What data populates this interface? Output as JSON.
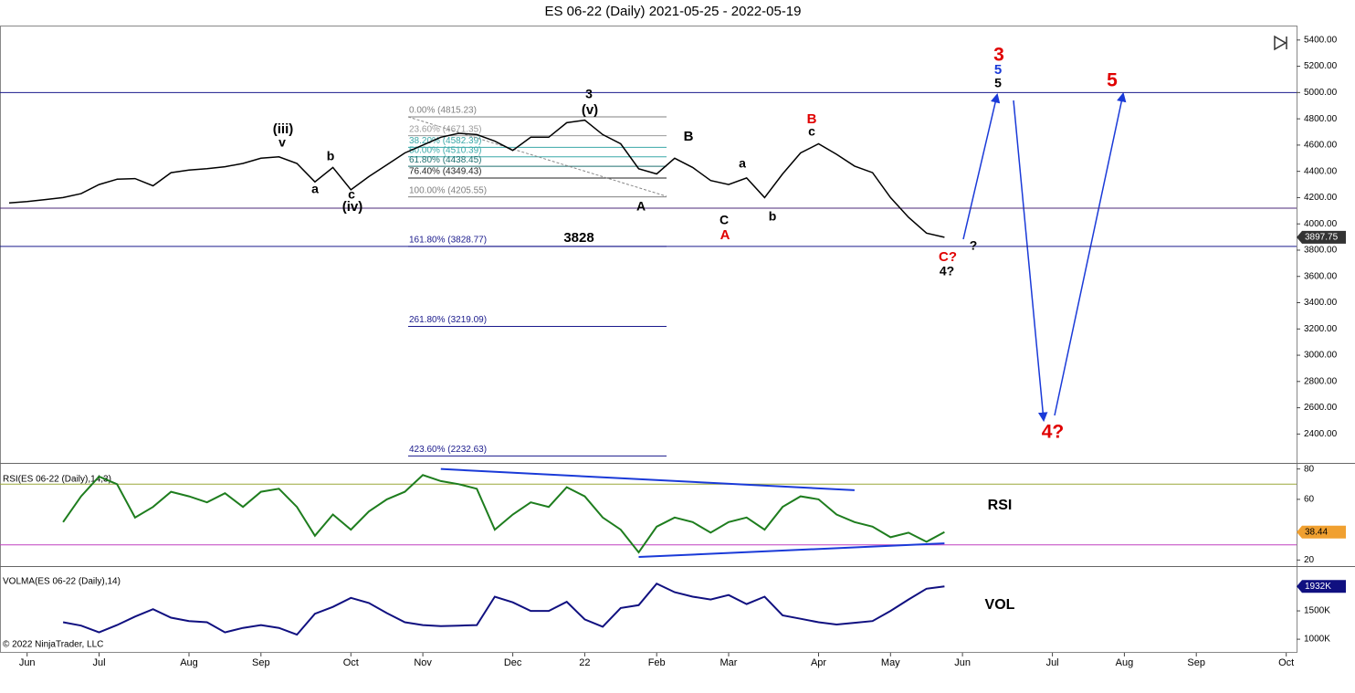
{
  "chart_data": [
    {
      "type": "line",
      "title": "ES 06-22 (Daily)  2021-05-25 - 2022-05-19",
      "color": "#000000",
      "categories": [
        null,
        "Jun",
        null,
        null,
        null,
        "Jul",
        null,
        null,
        null,
        null,
        "Aug",
        null,
        null,
        null,
        "Sep",
        null,
        null,
        null,
        null,
        "Oct",
        null,
        null,
        null,
        "Nov",
        null,
        null,
        null,
        null,
        "Dec",
        null,
        null,
        null,
        "22",
        null,
        null,
        null,
        "Feb",
        null,
        null,
        null,
        "Mar",
        null,
        null,
        null,
        null,
        "Apr",
        null,
        null,
        null,
        "May",
        null,
        null,
        null,
        "Jun",
        null,
        null,
        null,
        null,
        "Jul",
        null,
        null,
        null,
        "Aug",
        null,
        null,
        null,
        "Sep",
        null,
        null,
        null,
        null,
        "Oct"
      ],
      "values": [
        4160,
        4170,
        4185,
        4200,
        4230,
        4300,
        4340,
        4345,
        4290,
        4390,
        4410,
        4420,
        4435,
        4460,
        4500,
        4510,
        4460,
        4320,
        4430,
        4260,
        4360,
        4450,
        4540,
        4600,
        4660,
        4690,
        4680,
        4630,
        4560,
        4660,
        4660,
        4770,
        4790,
        4680,
        4610,
        4420,
        4380,
        4500,
        4430,
        4330,
        4300,
        4350,
        4200,
        4380,
        4540,
        4610,
        4530,
        4440,
        4390,
        4200,
        4050,
        3930,
        3897.75,
        null,
        null,
        null,
        null,
        null,
        null,
        null,
        null,
        null,
        null,
        null,
        null,
        null,
        null,
        null,
        null,
        null,
        null,
        null
      ],
      "ylim": [
        2180,
        5510
      ],
      "yticks": [
        {
          "value": 2400,
          "label": "2400.00"
        },
        {
          "value": 2600,
          "label": "2600.00"
        },
        {
          "value": 2800,
          "label": "2800.00"
        },
        {
          "value": 3000,
          "label": "3000.00"
        },
        {
          "value": 3200,
          "label": "3200.00"
        },
        {
          "value": 3400,
          "label": "3400.00"
        },
        {
          "value": 3600,
          "label": "3600.00"
        },
        {
          "value": 3800,
          "label": "3800.00"
        },
        {
          "value": 4000,
          "label": "4000.00"
        },
        {
          "value": 4200,
          "label": "4200.00"
        },
        {
          "value": 4400,
          "label": "4400.00"
        },
        {
          "value": 4600,
          "label": "4600.00"
        },
        {
          "value": 4800,
          "label": "4800.00"
        },
        {
          "value": 5000,
          "label": "5000.00"
        },
        {
          "value": 5200,
          "label": "5200.00"
        },
        {
          "value": 5400,
          "label": "5400.00"
        }
      ],
      "hlines": [
        {
          "value": 5000,
          "color": "#1a1a8c"
        },
        {
          "value": 4120,
          "color": "#4b2a7a"
        },
        {
          "value": 3828.77,
          "color": "#1a1a8c"
        }
      ],
      "fib": [
        {
          "value": 4815.23,
          "label": "0.00% (4815.23)",
          "color": "#808080"
        },
        {
          "value": 4671.35,
          "label": "23.60% (4671.35)",
          "color": "#9a9a9a"
        },
        {
          "value": 4582.39,
          "label": "38.20% (4582.39)",
          "color": "#3aa8a8"
        },
        {
          "value": 4510.39,
          "label": "50.00% (4510.39)",
          "color": "#3aa8a8"
        },
        {
          "value": 4438.45,
          "label": "61.80% (4438.45)",
          "color": "#1f6f6f"
        },
        {
          "value": 4349.43,
          "label": "76.40% (4349.43)",
          "color": "#222222"
        },
        {
          "value": 4205.55,
          "label": "100.00% (4205.55)",
          "color": "#808080"
        },
        {
          "value": 3828.77,
          "label": "161.80% (3828.77)",
          "color": "#1a1a8c"
        },
        {
          "value": 3219.09,
          "label": "261.80% (3219.09)",
          "color": "#1a1a8c"
        },
        {
          "value": 2232.63,
          "label": "423.60% (2232.63)",
          "color": "#1a1a8c"
        }
      ],
      "annotations": [
        "(iii)",
        "v",
        "a",
        "b",
        "c",
        "(iv)",
        "3",
        "(v)",
        "A",
        "B",
        "C",
        "A",
        "a",
        "b",
        "B",
        "c",
        "C?",
        "4?",
        "?",
        "3",
        "5",
        "5",
        "5",
        "4?",
        "3828"
      ],
      "copyright": "© 2022 NinjaTrader, LLC"
    },
    {
      "type": "line",
      "title": "RSI(ES 06-22 (Daily),14,3)",
      "label": "RSI",
      "color": "#1e7d1e",
      "values": [
        null,
        null,
        null,
        45,
        62,
        75,
        70,
        48,
        55,
        65,
        62,
        58,
        64,
        55,
        65,
        67,
        55,
        36,
        50,
        40,
        52,
        60,
        65,
        76,
        72,
        70,
        67,
        40,
        50,
        58,
        55,
        68,
        62,
        48,
        40,
        25,
        42,
        48,
        45,
        38,
        45,
        48,
        40,
        55,
        62,
        60,
        50,
        45,
        42,
        35,
        38,
        32,
        38.44,
        null,
        null,
        null,
        null,
        null,
        null,
        null,
        null,
        null,
        null,
        null,
        null,
        null,
        null,
        null,
        null,
        null,
        null,
        null
      ],
      "ylim": [
        16,
        84
      ],
      "yticks": [
        20,
        60,
        80
      ],
      "levels": [
        {
          "value": 70,
          "color": "#9aa83a"
        },
        {
          "value": 30,
          "color": "#c040c0"
        }
      ],
      "trendlines": [
        {
          "x": [
            24,
            47
          ],
          "values": [
            80,
            66
          ]
        },
        {
          "x": [
            35,
            52
          ],
          "values": [
            22,
            31
          ]
        }
      ]
    },
    {
      "type": "line",
      "title": "VOLMA(ES 06-22 (Daily),14)",
      "label": "VOL",
      "color": "#101080",
      "values": [
        null,
        null,
        null,
        1300,
        1240,
        1120,
        1250,
        1400,
        1530,
        1380,
        1320,
        1300,
        1120,
        1200,
        1250,
        1200,
        1080,
        1450,
        1570,
        1730,
        1640,
        1460,
        1300,
        1250,
        1230,
        1240,
        1250,
        1750,
        1650,
        1500,
        1500,
        1660,
        1350,
        1220,
        1550,
        1600,
        1980,
        1830,
        1750,
        1700,
        1780,
        1620,
        1750,
        1420,
        1360,
        1300,
        1260,
        1290,
        1320,
        1500,
        1700,
        1890,
        1932,
        null,
        null,
        null,
        null,
        null,
        null,
        null,
        null,
        null,
        null,
        null,
        null,
        null,
        null,
        null,
        null,
        null,
        null,
        null
      ],
      "value_labels": [
        null,
        null,
        null,
        null,
        null,
        null,
        null,
        null,
        null,
        null,
        null,
        null,
        null,
        null,
        null,
        null,
        null,
        null,
        null,
        null,
        null,
        null,
        null,
        null,
        null,
        null,
        null,
        null,
        null,
        null,
        null,
        null,
        null,
        null,
        null,
        null,
        null,
        null,
        null,
        null,
        null,
        null,
        null,
        null,
        null,
        null,
        null,
        null,
        null,
        null,
        null,
        null,
        "1932K",
        null,
        null,
        null,
        null,
        null,
        null,
        null,
        null,
        null,
        null,
        null,
        null,
        null,
        null,
        null,
        null,
        null,
        null,
        null
      ],
      "ylim": [
        760,
        2290
      ],
      "yticks": [
        {
          "value": 1000,
          "label": "1000K"
        },
        {
          "value": 1500,
          "label": "1500K"
        }
      ]
    }
  ]
}
